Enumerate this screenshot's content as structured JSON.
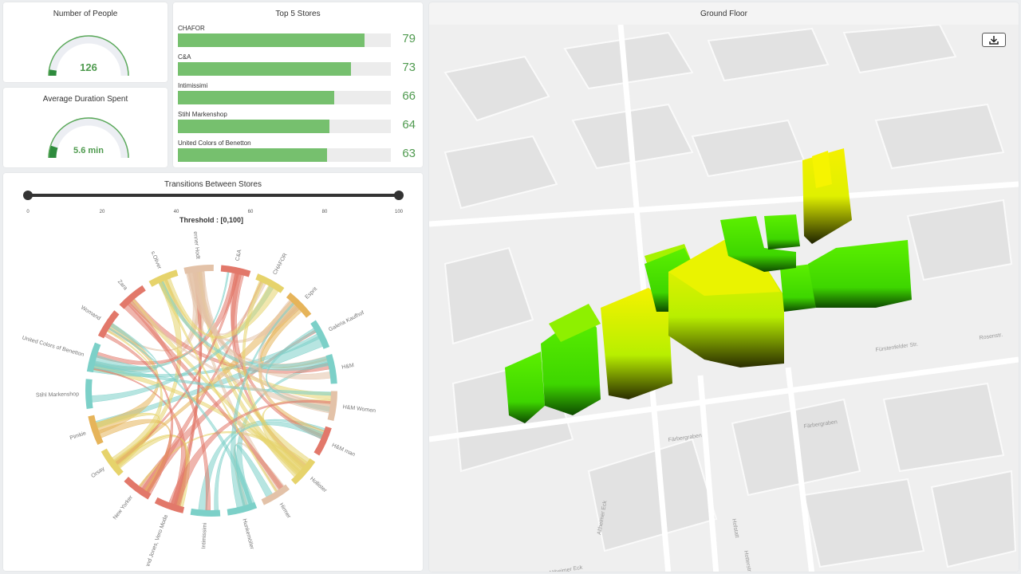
{
  "people": {
    "title": "Number of People",
    "value": "126",
    "fraction": 0.05
  },
  "duration": {
    "title": "Average Duration Spent",
    "value": "5.6 min",
    "fraction": 0.1
  },
  "top_stores": {
    "title": "Top 5 Stores",
    "max": 90,
    "items": [
      {
        "name": "CHAFOR",
        "value": 79
      },
      {
        "name": "C&A",
        "value": 73
      },
      {
        "name": "Intimissimi",
        "value": 66
      },
      {
        "name": "Stihl Markenshop",
        "value": 64
      },
      {
        "name": "United Colors of Benetton",
        "value": 63
      }
    ]
  },
  "transitions": {
    "title": "Transitions Between Stores",
    "ticks": [
      "0",
      "20",
      "40",
      "60",
      "80",
      "100"
    ],
    "threshold_label": "Threshold : [0,100]",
    "stores": [
      {
        "name": "s.Oliver",
        "color": "#e6d36b"
      },
      {
        "name": "Brenner Hodt",
        "color": "#e3c2a8"
      },
      {
        "name": "C&A",
        "color": "#e2786a"
      },
      {
        "name": "CHAFOR",
        "color": "#e6d36b"
      },
      {
        "name": "Esprit",
        "color": "#e6b45a"
      },
      {
        "name": "Galeria Kaufhof",
        "color": "#7cd0c8"
      },
      {
        "name": "H&M",
        "color": "#7cd0c8"
      },
      {
        "name": "H&M Women",
        "color": "#e3c2a8"
      },
      {
        "name": "H&M man",
        "color": "#e2786a"
      },
      {
        "name": "Hollister",
        "color": "#e6d36b"
      },
      {
        "name": "Hirmer",
        "color": "#e3c2a8"
      },
      {
        "name": "Hunkemöller",
        "color": "#7cd0c8"
      },
      {
        "name": "Intimissimi",
        "color": "#7cd0c8"
      },
      {
        "name": "Jack and Jones, Vero Moda",
        "color": "#e2786a"
      },
      {
        "name": "New Yorker",
        "color": "#e2786a"
      },
      {
        "name": "Orsay",
        "color": "#e6d36b"
      },
      {
        "name": "Pimkie",
        "color": "#e6b45a"
      },
      {
        "name": "Stihl Markenshop",
        "color": "#7cd0c8"
      },
      {
        "name": "United Colors of Benetton",
        "color": "#7cd0c8"
      },
      {
        "name": "Womand",
        "color": "#e2786a"
      },
      {
        "name": "Zara",
        "color": "#e2786a"
      }
    ]
  },
  "map": {
    "title": "Ground Floor",
    "streets": [
      "Färbergraben",
      "Färbergraben",
      "Fürstenfelder Str.",
      "Altheimer Eck",
      "Altheimer Eck",
      "Hofstatt",
      "Hotterstraße",
      "Rosenstr."
    ],
    "download_icon": "download-icon"
  }
}
